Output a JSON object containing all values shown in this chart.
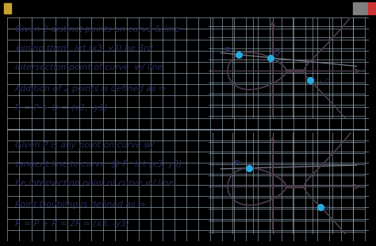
{
  "bg_outer": "#000000",
  "bg_window": "#e8e0e8",
  "bg_inner": "#cddce8",
  "grid_color": "#a8bece",
  "text_color": "#2a2a5a",
  "curve_color": "#4a3a4a",
  "line_color": "#7a7a8a",
  "point_color": "#29aadf",
  "divider_color": "#a0b0c0",
  "text1_lines": [
    "Given 2 distinct points on curve & line",
    "joining them, let (x3, y3) be 3rd",
    "intersection point of curve  w/ line.",
    "Addition of 2 points is defined as ⇒",
    "R = P + Q = (x3, -y3)"
  ],
  "text2_lines": [
    "Given P is any point on curve w/",
    "tangent line to curve  @ P,  let (x3, y3)",
    "be intersection point of curve w/ line.",
    "Point Doubling is defined as ⇒",
    "R = P + P = 2P = (x3, -y3)"
  ]
}
